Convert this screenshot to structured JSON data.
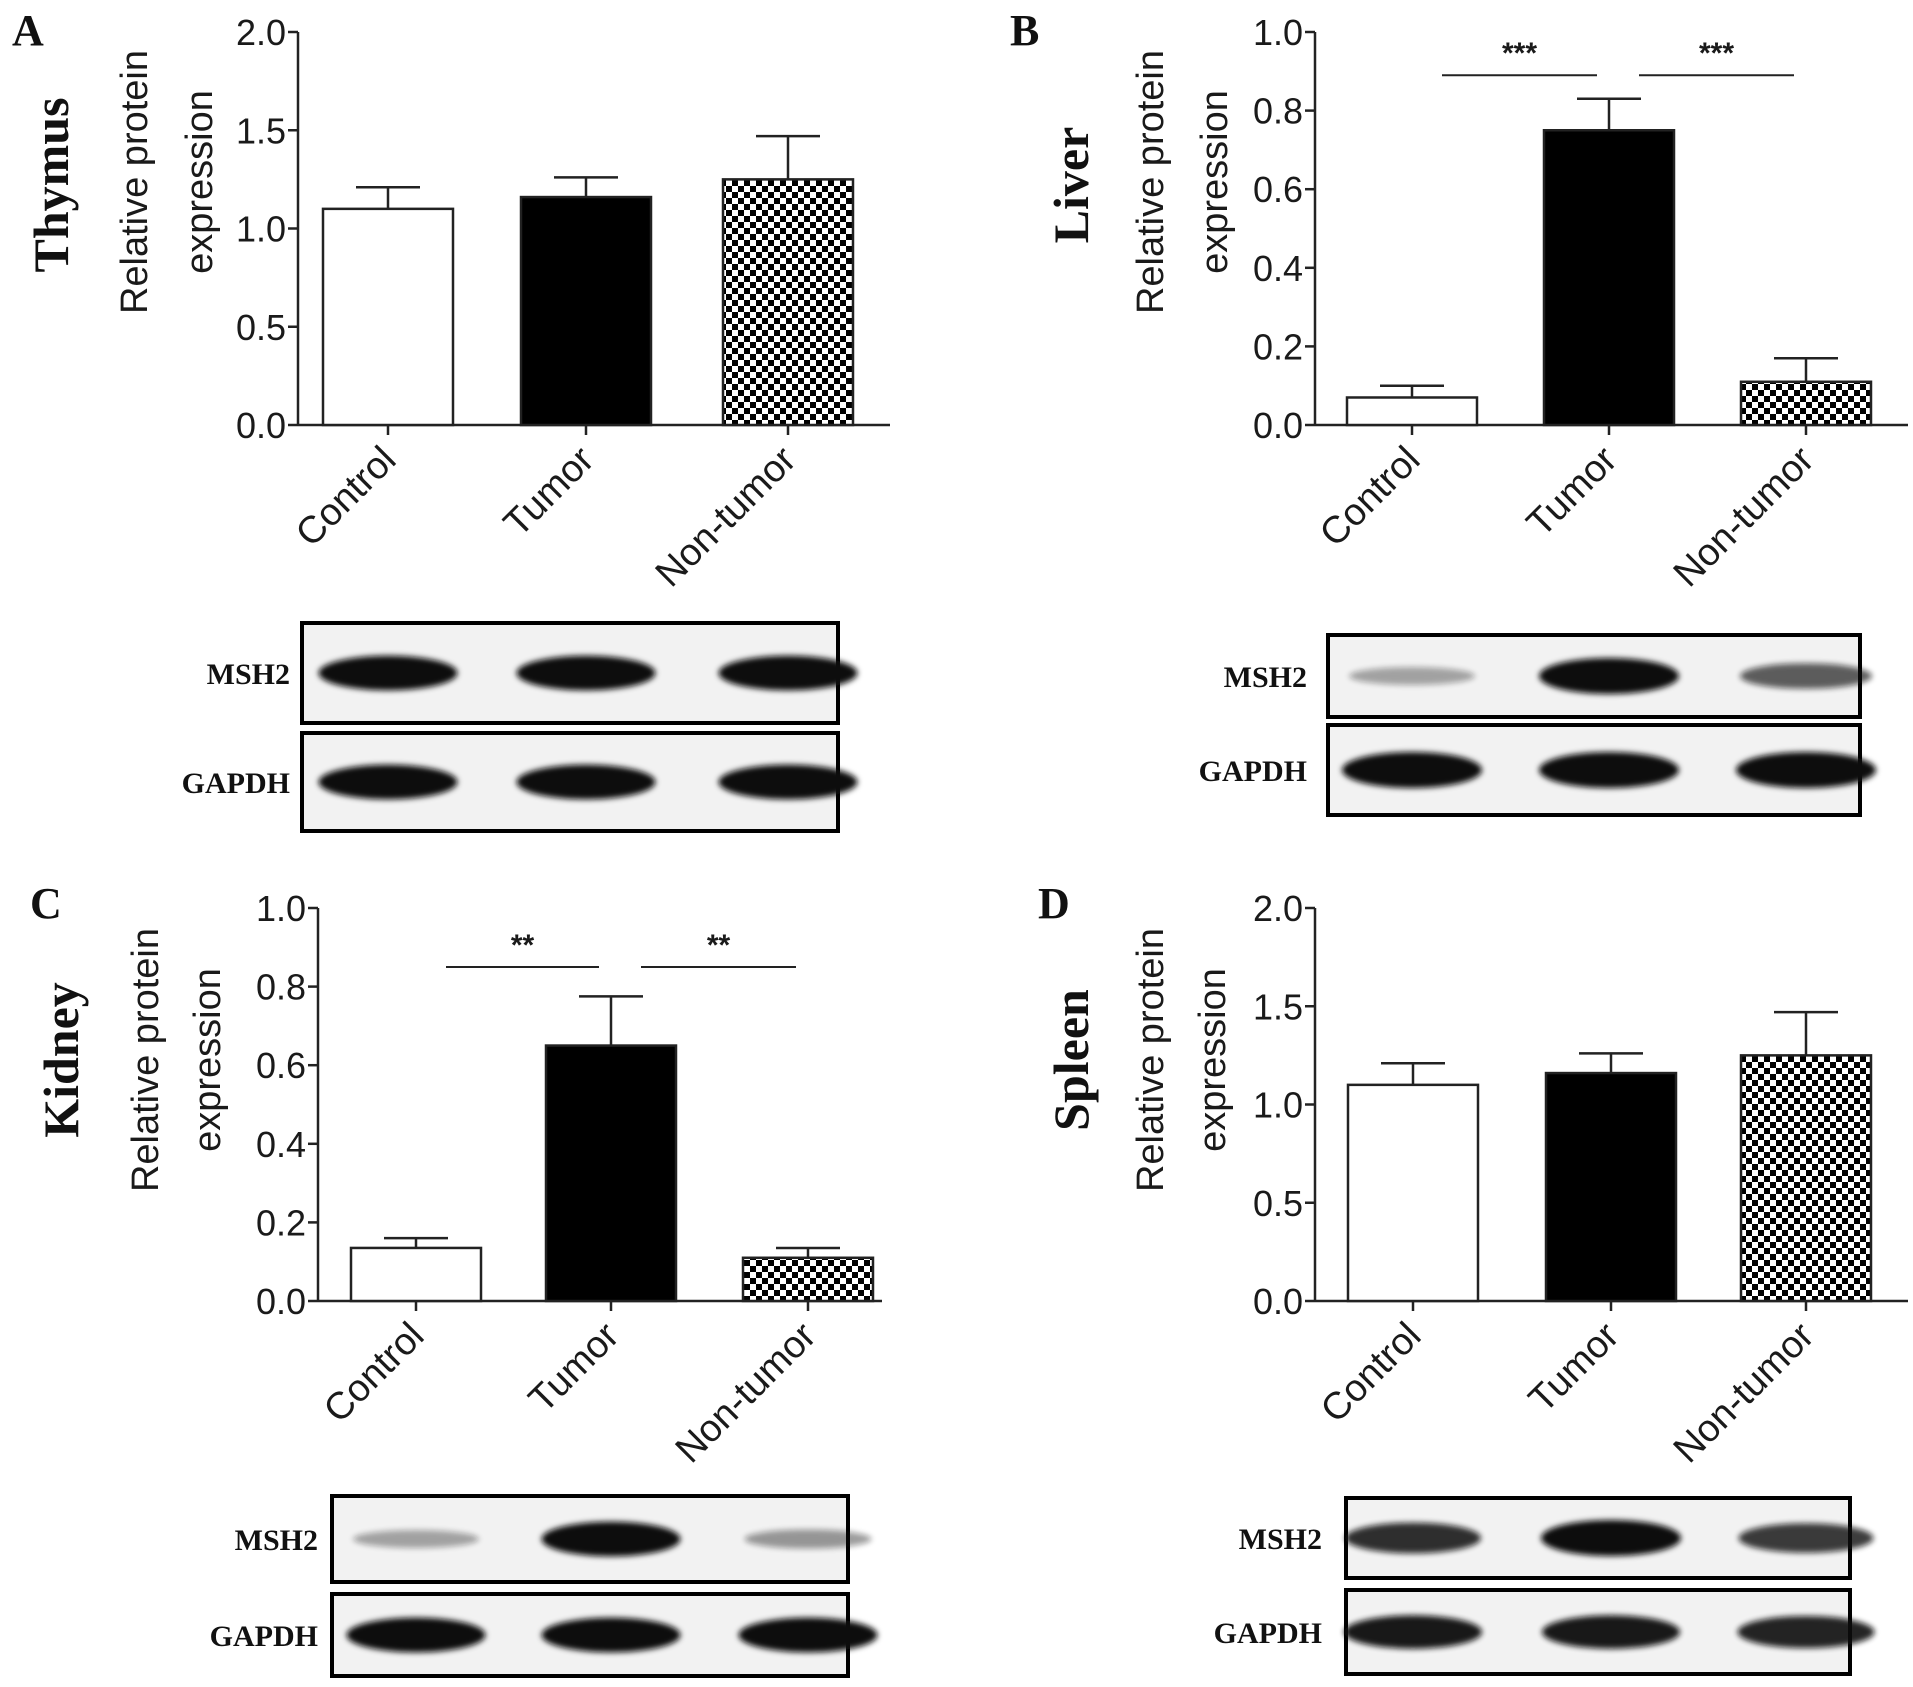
{
  "chart_data": [
    {
      "panel": "A",
      "tissue": "Thymus",
      "type": "bar",
      "categories": [
        "Control",
        "Tumor",
        "Non-tumor"
      ],
      "values": [
        1.1,
        1.16,
        1.25
      ],
      "errors": [
        0.11,
        0.1,
        0.22
      ],
      "fills": [
        "white",
        "black",
        "checker"
      ],
      "ylabel": [
        "Relative protein",
        "expression"
      ],
      "ylim": [
        0,
        2.0
      ],
      "yticks": [
        "0.0",
        "0.5",
        "1.0",
        "1.5",
        "2.0"
      ],
      "significance": [],
      "blot": {
        "rows": [
          "MSH2",
          "GAPDH"
        ],
        "msh2_intensity": [
          0.95,
          0.95,
          0.95
        ],
        "gapdh_intensity": [
          0.95,
          0.95,
          0.95
        ]
      }
    },
    {
      "panel": "B",
      "tissue": "Liver",
      "type": "bar",
      "categories": [
        "Control",
        "Tumor",
        "Non-tumor"
      ],
      "values": [
        0.07,
        0.75,
        0.11
      ],
      "errors": [
        0.03,
        0.08,
        0.06
      ],
      "fills": [
        "white",
        "black",
        "checker"
      ],
      "ylabel": [
        "Relative protein",
        "expression"
      ],
      "ylim": [
        0,
        1.0
      ],
      "yticks": [
        "0.0",
        "0.2",
        "0.4",
        "0.6",
        "0.8",
        "1.0"
      ],
      "significance": [
        {
          "label": "***",
          "from": 0,
          "to": 1,
          "y": 0.89
        },
        {
          "label": "***",
          "from": 1,
          "to": 2,
          "y": 0.89
        }
      ],
      "blot": {
        "rows": [
          "MSH2",
          "GAPDH"
        ],
        "msh2_intensity": [
          0.3,
          1.0,
          0.6
        ],
        "gapdh_intensity": [
          1.0,
          1.0,
          1.0
        ]
      }
    },
    {
      "panel": "C",
      "tissue": "Kidney",
      "type": "bar",
      "categories": [
        "Control",
        "Tumor",
        "Non-tumor"
      ],
      "values": [
        0.135,
        0.65,
        0.11
      ],
      "errors": [
        0.025,
        0.125,
        0.025
      ],
      "fills": [
        "white",
        "black",
        "checker"
      ],
      "ylabel": [
        "Relative protein",
        "expression"
      ],
      "ylim": [
        0,
        1.0
      ],
      "yticks": [
        "0.0",
        "0.2",
        "0.4",
        "0.6",
        "0.8",
        "1.0"
      ],
      "significance": [
        {
          "label": "**",
          "from": 0,
          "to": 1,
          "y": 0.85
        },
        {
          "label": "**",
          "from": 1,
          "to": 2,
          "y": 0.85
        }
      ],
      "blot": {
        "rows": [
          "MSH2",
          "GAPDH"
        ],
        "msh2_intensity": [
          0.3,
          0.95,
          0.35
        ],
        "gapdh_intensity": [
          0.95,
          0.95,
          0.95
        ]
      }
    },
    {
      "panel": "D",
      "tissue": "Spleen",
      "type": "bar",
      "categories": [
        "Control",
        "Tumor",
        "Non-tumor"
      ],
      "values": [
        1.1,
        1.16,
        1.25
      ],
      "errors": [
        0.11,
        0.1,
        0.22
      ],
      "fills": [
        "white",
        "black",
        "checker"
      ],
      "ylabel": [
        "Relative protein",
        "expression"
      ],
      "ylim": [
        0,
        2.0
      ],
      "yticks": [
        "0.0",
        "0.5",
        "1.0",
        "1.5",
        "2.0"
      ],
      "significance": [],
      "blot": {
        "rows": [
          "MSH2",
          "GAPDH"
        ],
        "msh2_intensity": [
          0.8,
          1.0,
          0.75
        ],
        "gapdh_intensity": [
          0.9,
          0.9,
          0.85
        ]
      }
    }
  ],
  "colors": {
    "bar_black": "#000000",
    "bar_white": "#ffffff",
    "axis": "#222222",
    "band": "#111111",
    "blot_bg": "#f2f2f2"
  }
}
